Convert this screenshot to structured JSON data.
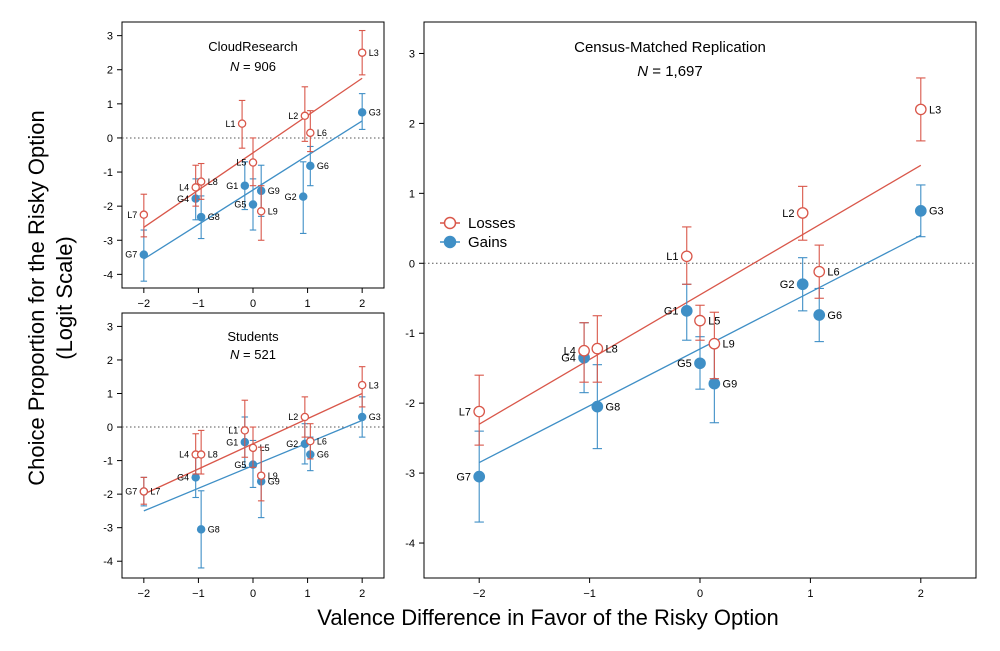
{
  "figure": {
    "ylabel_line1": "Choice Proportion for the Risky Option",
    "ylabel_line2": "(Logit Scale)",
    "xlabel": "Valence Difference in Favor of the Risky Option"
  },
  "colors": {
    "losses": "#d9574a",
    "gains": "#3f8fc6",
    "axis": "#000000",
    "zero_line": "#555555"
  },
  "legend": {
    "losses": "Losses",
    "gains": "Gains"
  },
  "chart_data": [
    {
      "id": "cloudresearch",
      "type": "scatter",
      "title": "CloudResearch",
      "n_label": "N",
      "n_value": "= 906",
      "xlim": [
        -2.4,
        2.4
      ],
      "ylim": [
        -4.4,
        3.4
      ],
      "xticks": [
        "-2",
        "-1",
        "0",
        "1",
        "2"
      ],
      "xtick_values": [
        -2,
        -1,
        0,
        1,
        2
      ],
      "yticks": [
        "-4",
        "-3",
        "-2",
        "-1",
        "0",
        "1",
        "2",
        "3"
      ],
      "ytick_values": [
        -4,
        -3,
        -2,
        -1,
        0,
        1,
        2,
        3
      ],
      "fits": [
        {
          "series": "losses",
          "x": [
            -2,
            2
          ],
          "y": [
            -2.62,
            1.75
          ]
        },
        {
          "series": "gains",
          "x": [
            -2,
            2
          ],
          "y": [
            -3.55,
            0.5
          ]
        }
      ],
      "series": [
        {
          "name": "losses",
          "points": [
            {
              "label": "L1",
              "x": -0.2,
              "y": 0.42,
              "lo": -0.3,
              "hi": 1.1,
              "side": "left"
            },
            {
              "label": "L2",
              "x": 0.95,
              "y": 0.65,
              "lo": -0.1,
              "hi": 1.5,
              "side": "left"
            },
            {
              "label": "L3",
              "x": 2.0,
              "y": 2.5,
              "lo": 1.85,
              "hi": 3.15,
              "side": "right"
            },
            {
              "label": "L4",
              "x": -1.05,
              "y": -1.45,
              "lo": -2.0,
              "hi": -0.8,
              "side": "left"
            },
            {
              "label": "L5",
              "x": 0.0,
              "y": -0.72,
              "lo": -1.4,
              "hi": 0.0,
              "side": "left"
            },
            {
              "label": "L6",
              "x": 1.05,
              "y": 0.15,
              "lo": -0.4,
              "hi": 0.8,
              "side": "right"
            },
            {
              "label": "L7",
              "x": -2.0,
              "y": -2.25,
              "lo": -2.9,
              "hi": -1.65,
              "side": "left"
            },
            {
              "label": "L8",
              "x": -0.95,
              "y": -1.28,
              "lo": -1.8,
              "hi": -0.75,
              "side": "right"
            },
            {
              "label": "L9",
              "x": 0.15,
              "y": -2.15,
              "lo": -3.0,
              "hi": -1.4,
              "side": "right"
            }
          ]
        },
        {
          "name": "gains",
          "points": [
            {
              "label": "G1",
              "x": -0.15,
              "y": -1.4,
              "lo": -2.1,
              "hi": -0.7,
              "side": "left"
            },
            {
              "label": "G2",
              "x": 0.92,
              "y": -1.72,
              "lo": -2.8,
              "hi": -0.7,
              "side": "left"
            },
            {
              "label": "G3",
              "x": 2.0,
              "y": 0.75,
              "lo": 0.25,
              "hi": 1.3,
              "side": "right"
            },
            {
              "label": "G4",
              "x": -1.05,
              "y": -1.78,
              "lo": -2.4,
              "hi": -1.2,
              "side": "left"
            },
            {
              "label": "G5",
              "x": 0.0,
              "y": -1.95,
              "lo": -2.7,
              "hi": -1.2,
              "side": "left"
            },
            {
              "label": "G6",
              "x": 1.05,
              "y": -0.82,
              "lo": -1.4,
              "hi": -0.25,
              "side": "right"
            },
            {
              "label": "G7",
              "x": -2.0,
              "y": -3.42,
              "lo": -4.2,
              "hi": -2.7,
              "side": "left"
            },
            {
              "label": "G8",
              "x": -0.95,
              "y": -2.32,
              "lo": -2.95,
              "hi": -1.7,
              "side": "right"
            },
            {
              "label": "G9",
              "x": 0.15,
              "y": -1.55,
              "lo": -2.3,
              "hi": -0.8,
              "side": "right"
            }
          ]
        }
      ]
    },
    {
      "id": "students",
      "type": "scatter",
      "title": "Students",
      "n_label": "N",
      "n_value": "= 521",
      "xlim": [
        -2.4,
        2.4
      ],
      "ylim": [
        -4.5,
        3.4
      ],
      "xticks": [
        "-2",
        "-1",
        "0",
        "1",
        "2"
      ],
      "xtick_values": [
        -2,
        -1,
        0,
        1,
        2
      ],
      "yticks": [
        "-4",
        "-3",
        "-2",
        "-1",
        "0",
        "1",
        "2",
        "3"
      ],
      "ytick_values": [
        -4,
        -3,
        -2,
        -1,
        0,
        1,
        2,
        3
      ],
      "fits": [
        {
          "series": "losses",
          "x": [
            -2,
            2
          ],
          "y": [
            -2.0,
            1.0
          ]
        },
        {
          "series": "gains",
          "x": [
            -2,
            2
          ],
          "y": [
            -2.5,
            0.2
          ]
        }
      ],
      "series": [
        {
          "name": "losses",
          "points": [
            {
              "label": "L1",
              "x": -0.15,
              "y": -0.1,
              "lo": -0.9,
              "hi": 0.8,
              "side": "left"
            },
            {
              "label": "L2",
              "x": 0.95,
              "y": 0.3,
              "lo": -0.3,
              "hi": 0.9,
              "side": "left"
            },
            {
              "label": "L3",
              "x": 2.0,
              "y": 1.25,
              "lo": 0.6,
              "hi": 1.8,
              "side": "right"
            },
            {
              "label": "L4",
              "x": -1.05,
              "y": -0.82,
              "lo": -1.4,
              "hi": -0.2,
              "side": "left"
            },
            {
              "label": "L5",
              "x": 0.0,
              "y": -0.62,
              "lo": -1.2,
              "hi": 0.0,
              "side": "right"
            },
            {
              "label": "L6",
              "x": 1.05,
              "y": -0.42,
              "lo": -0.95,
              "hi": 0.1,
              "side": "right"
            },
            {
              "label": "L7",
              "x": -2.0,
              "y": -1.92,
              "lo": -2.3,
              "hi": -1.5,
              "side": "right"
            },
            {
              "label": "L8",
              "x": -0.95,
              "y": -0.82,
              "lo": -1.4,
              "hi": -0.1,
              "side": "right"
            },
            {
              "label": "L9",
              "x": 0.15,
              "y": -1.45,
              "lo": -2.2,
              "hi": -0.6,
              "side": "right"
            }
          ]
        },
        {
          "name": "gains",
          "points": [
            {
              "label": "G1",
              "x": -0.15,
              "y": -0.45,
              "lo": -1.2,
              "hi": 0.3,
              "side": "left"
            },
            {
              "label": "G2",
              "x": 0.95,
              "y": -0.5,
              "lo": -1.1,
              "hi": 0.1,
              "side": "left"
            },
            {
              "label": "G3",
              "x": 2.0,
              "y": 0.3,
              "lo": -0.3,
              "hi": 0.9,
              "side": "right"
            },
            {
              "label": "G4",
              "x": -1.05,
              "y": -1.5,
              "lo": -2.1,
              "hi": -0.9,
              "side": "left"
            },
            {
              "label": "G5",
              "x": 0.0,
              "y": -1.12,
              "lo": -1.8,
              "hi": -0.4,
              "side": "left"
            },
            {
              "label": "G6",
              "x": 1.05,
              "y": -0.82,
              "lo": -1.3,
              "hi": -0.3,
              "side": "right"
            },
            {
              "label": "G7",
              "x": -2.0,
              "y": -1.92,
              "lo": -2.35,
              "hi": -1.5,
              "side": "left"
            },
            {
              "label": "G8",
              "x": -0.95,
              "y": -3.05,
              "lo": -4.2,
              "hi": -1.9,
              "side": "right"
            },
            {
              "label": "G9",
              "x": 0.15,
              "y": -1.62,
              "lo": -2.7,
              "hi": -0.6,
              "side": "right"
            }
          ]
        }
      ]
    },
    {
      "id": "census",
      "type": "scatter",
      "title": "Census-Matched Replication",
      "n_label": "N",
      "n_value": "= 1,697",
      "xlim": [
        -2.5,
        2.5
      ],
      "ylim": [
        -4.5,
        3.45
      ],
      "xticks": [
        "-2",
        "-1",
        "0",
        "1",
        "2"
      ],
      "xtick_values": [
        -2,
        -1,
        0,
        1,
        2
      ],
      "yticks": [
        "-4",
        "-3",
        "-2",
        "-1",
        "0",
        "1",
        "2",
        "3"
      ],
      "ytick_values": [
        -4,
        -3,
        -2,
        -1,
        0,
        1,
        2,
        3
      ],
      "fits": [
        {
          "series": "losses",
          "x": [
            -2,
            2
          ],
          "y": [
            -2.3,
            1.4
          ]
        },
        {
          "series": "gains",
          "x": [
            -2,
            2
          ],
          "y": [
            -2.85,
            0.4
          ]
        }
      ],
      "series": [
        {
          "name": "losses",
          "points": [
            {
              "label": "L1",
              "x": -0.12,
              "y": 0.1,
              "lo": -0.3,
              "hi": 0.52,
              "side": "left"
            },
            {
              "label": "L2",
              "x": 0.93,
              "y": 0.72,
              "lo": 0.33,
              "hi": 1.1,
              "side": "left"
            },
            {
              "label": "L3",
              "x": 2.0,
              "y": 2.2,
              "lo": 1.75,
              "hi": 2.65,
              "side": "right"
            },
            {
              "label": "L4",
              "x": -1.05,
              "y": -1.25,
              "lo": -1.7,
              "hi": -0.85,
              "side": "left"
            },
            {
              "label": "L5",
              "x": 0.0,
              "y": -0.82,
              "lo": -1.1,
              "hi": -0.6,
              "side": "right"
            },
            {
              "label": "L6",
              "x": 1.08,
              "y": -0.12,
              "lo": -0.5,
              "hi": 0.26,
              "side": "right"
            },
            {
              "label": "L7",
              "x": -2.0,
              "y": -2.12,
              "lo": -2.6,
              "hi": -1.6,
              "side": "left"
            },
            {
              "label": "L8",
              "x": -0.93,
              "y": -1.22,
              "lo": -1.7,
              "hi": -0.75,
              "side": "right"
            },
            {
              "label": "L9",
              "x": 0.13,
              "y": -1.15,
              "lo": -1.65,
              "hi": -0.7,
              "side": "right"
            }
          ]
        },
        {
          "name": "gains",
          "points": [
            {
              "label": "G1",
              "x": -0.12,
              "y": -0.68,
              "lo": -1.1,
              "hi": -0.3,
              "side": "left"
            },
            {
              "label": "G2",
              "x": 0.93,
              "y": -0.3,
              "lo": -0.68,
              "hi": 0.08,
              "side": "left"
            },
            {
              "label": "G3",
              "x": 2.0,
              "y": 0.75,
              "lo": 0.38,
              "hi": 1.12,
              "side": "right"
            },
            {
              "label": "G4",
              "x": -1.05,
              "y": -1.35,
              "lo": -1.85,
              "hi": -0.85,
              "side": "left"
            },
            {
              "label": "G5",
              "x": 0.0,
              "y": -1.43,
              "lo": -1.8,
              "hi": -1.05,
              "side": "left"
            },
            {
              "label": "G6",
              "x": 1.08,
              "y": -0.74,
              "lo": -1.12,
              "hi": -0.36,
              "side": "right"
            },
            {
              "label": "G7",
              "x": -2.0,
              "y": -3.05,
              "lo": -3.7,
              "hi": -2.4,
              "side": "left"
            },
            {
              "label": "G8",
              "x": -0.93,
              "y": -2.05,
              "lo": -2.65,
              "hi": -1.45,
              "side": "right"
            },
            {
              "label": "G9",
              "x": 0.13,
              "y": -1.72,
              "lo": -2.28,
              "hi": -1.15,
              "side": "right"
            }
          ]
        }
      ]
    }
  ]
}
